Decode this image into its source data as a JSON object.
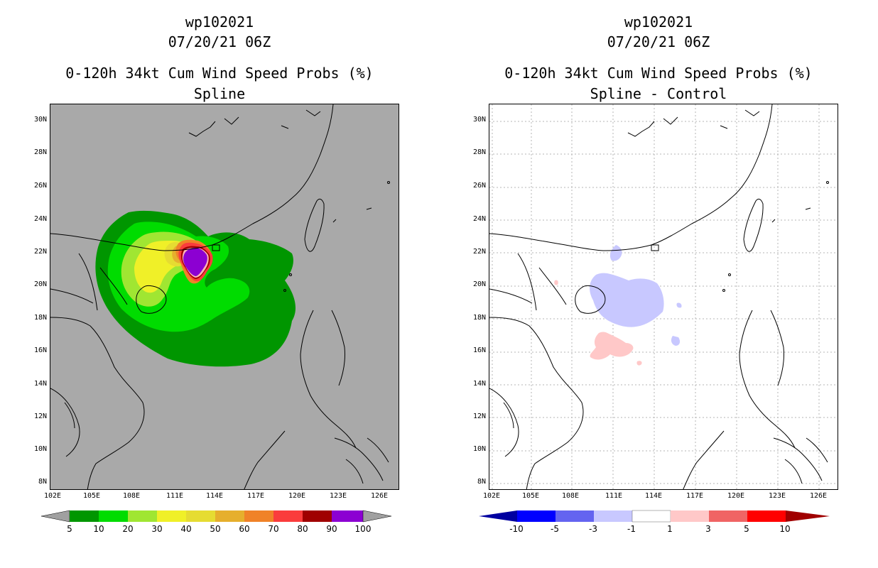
{
  "panels": [
    {
      "title_line1": "wp102021",
      "title_line2": "07/20/21 06Z",
      "title_line3": "0-120h 34kt Cum Wind Speed Probs (%)",
      "title_line4": "Spline",
      "map_background": "#a9a9a9"
    },
    {
      "title_line1": "wp102021",
      "title_line2": "07/20/21 06Z",
      "title_line3": "0-120h 34kt Cum Wind Speed Probs (%)",
      "title_line4": "Spline - Control",
      "map_background": "#ffffff"
    }
  ],
  "map": {
    "lat_labels": [
      "30N",
      "28N",
      "26N",
      "24N",
      "22N",
      "20N",
      "18N",
      "16N",
      "14N",
      "12N",
      "10N",
      "8N"
    ],
    "lon_labels": [
      "102E",
      "105E",
      "108E",
      "111E",
      "114E",
      "117E",
      "120E",
      "123E",
      "126E"
    ],
    "lat_range": [
      7.5,
      31.0
    ],
    "lon_range": [
      102,
      127
    ]
  },
  "colorbar_left": {
    "labels": [
      "5",
      "10",
      "20",
      "30",
      "40",
      "50",
      "60",
      "70",
      "80",
      "90",
      "100"
    ],
    "colors": [
      "#009600",
      "#00dc00",
      "#a0e632",
      "#f0f028",
      "#e6dc32",
      "#e6af2d",
      "#f08228",
      "#fa3c3c",
      "#a00000",
      "#8c00d2"
    ],
    "end_left": "#a0a0a0",
    "end_right": "#a0a0a0"
  },
  "colorbar_right": {
    "labels": [
      "-10",
      "-5",
      "-3",
      "-1",
      "1",
      "3",
      "5",
      "10"
    ],
    "colors": [
      "#0000ff",
      "#6464f0",
      "#c8c8ff",
      "#ffffff",
      "#ffc8c8",
      "#f06464",
      "#ff0000"
    ],
    "end_left": "#0000a0",
    "end_right": "#a00000"
  },
  "colors": {
    "coast": "#000000",
    "grid": "#b4b4b4"
  }
}
